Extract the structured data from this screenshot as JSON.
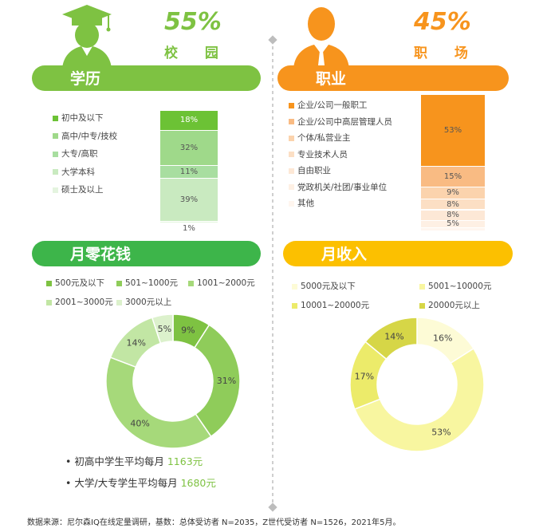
{
  "header": {
    "left": {
      "percent": "55%",
      "label": "校 园",
      "color": "#7ec242"
    },
    "right": {
      "percent": "45%",
      "label": "职 场",
      "color": "#f7941d"
    }
  },
  "sections": {
    "education": "学历",
    "occupation": "职业",
    "spending": "月零花钱",
    "income": "月收入"
  },
  "footer": {
    "source": "数据来源：尼尔森IQ在线定量调研，基数：总体受访者 N=2035，Z世代受访者 N=1526，2021年5月。"
  },
  "notes": [
    {
      "label": "初高中学生平均每月",
      "value": "1163元"
    },
    {
      "label": "大学/大专学生平均每月",
      "value": "1680元"
    }
  ],
  "chart_data": [
    {
      "type": "bar",
      "title": "学历",
      "stacked": true,
      "categories": [
        "初中及以下",
        "高中/中专/技校",
        "大专/高职",
        "大学本科",
        "硕士及以上"
      ],
      "values": [
        18,
        32,
        11,
        39,
        1
      ],
      "labels": [
        "18%",
        "32%",
        "11%",
        "39%",
        "1%"
      ],
      "colors": [
        "#6cc235",
        "#9fd98a",
        "#a8deA0",
        "#c9eac0",
        "#e4f4df"
      ]
    },
    {
      "type": "bar",
      "title": "职业",
      "stacked": true,
      "categories": [
        "企业/公司一般职工",
        "企业/公司中高层管理人员",
        "个体/私营业主",
        "专业技术人员",
        "自由职业",
        "党政机关/社团/事业单位",
        "其他"
      ],
      "values": [
        53,
        15,
        9,
        8,
        8,
        5,
        2
      ],
      "labels": [
        "53%",
        "15%",
        "9%",
        "8%",
        "8%",
        "5%",
        ""
      ],
      "colors": [
        "#f7941d",
        "#f9bb83",
        "#fbd3ad",
        "#fcdfc4",
        "#fde8d6",
        "#fef0e4",
        "#fff6ef"
      ]
    },
    {
      "type": "pie",
      "title": "月零花钱",
      "donut": true,
      "categories": [
        "500元及以下",
        "501~1000元",
        "1001~2000元",
        "2001~3000元",
        "3000元以上"
      ],
      "values": [
        9,
        31,
        40,
        14,
        5
      ],
      "labels": [
        "9%",
        "31%",
        "40%",
        "14%",
        "5%"
      ],
      "colors": [
        "#7ec242",
        "#8fcc5a",
        "#a6d97a",
        "#c2e6a4",
        "#dcf1cc"
      ]
    },
    {
      "type": "pie",
      "title": "月收入",
      "donut": true,
      "categories": [
        "5000元及以下",
        "5001~10000元",
        "10001~20000元",
        "20000元以上"
      ],
      "values": [
        16,
        53,
        17,
        14
      ],
      "labels": [
        "16%",
        "53%",
        "17%",
        "14%"
      ],
      "colors": [
        "#fdfbd6",
        "#f8f6a0",
        "#eceb6a",
        "#d6d647"
      ]
    }
  ]
}
